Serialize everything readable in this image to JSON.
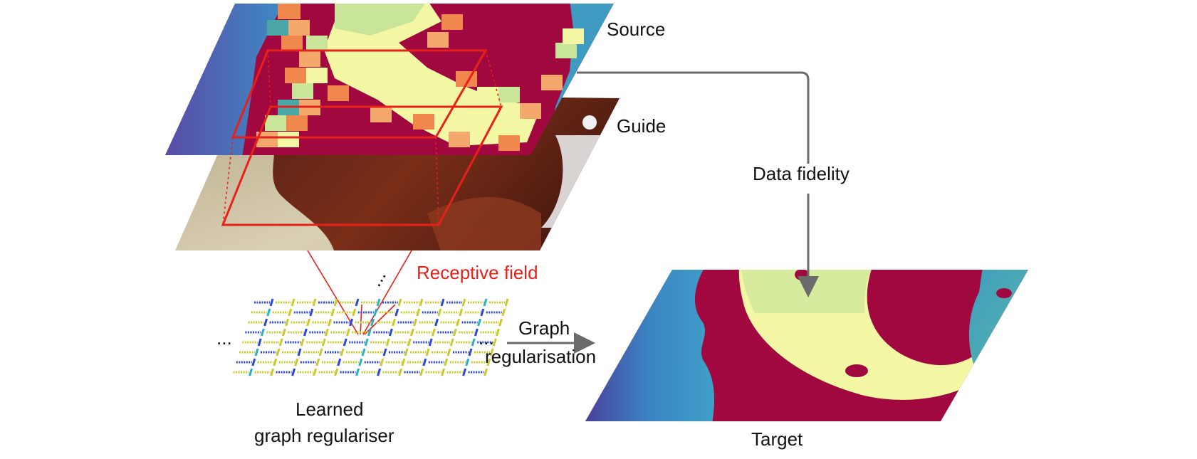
{
  "labels": {
    "source": "Source",
    "guide": "Guide",
    "data_fidelity": "Data fidelity",
    "receptive_field": "Receptive field",
    "graph_line1": "Graph",
    "graph_line2": "regularisation",
    "learned_line1": "Learned",
    "learned_line2": "graph regulariser",
    "target": "Target",
    "ellipsis": "..."
  },
  "colors": {
    "receptive_field": "#e8201a",
    "arrow": "#6b6b6b",
    "crimson": "#a0083f",
    "yellow": "#f4f7a3",
    "light_green": "#c9e59a",
    "orange": "#f0884e",
    "salmon": "#f4a86b",
    "teal": "#4aa7a6",
    "blue": "#3a7fbf",
    "purple": "#5a4ea8",
    "guide_skin": "#cfc3a3",
    "guide_dark": "#6b2a1a",
    "graph_blue": "#2b45d6",
    "graph_yellow": "#c9c929",
    "graph_cyan": "#26b0c6"
  }
}
